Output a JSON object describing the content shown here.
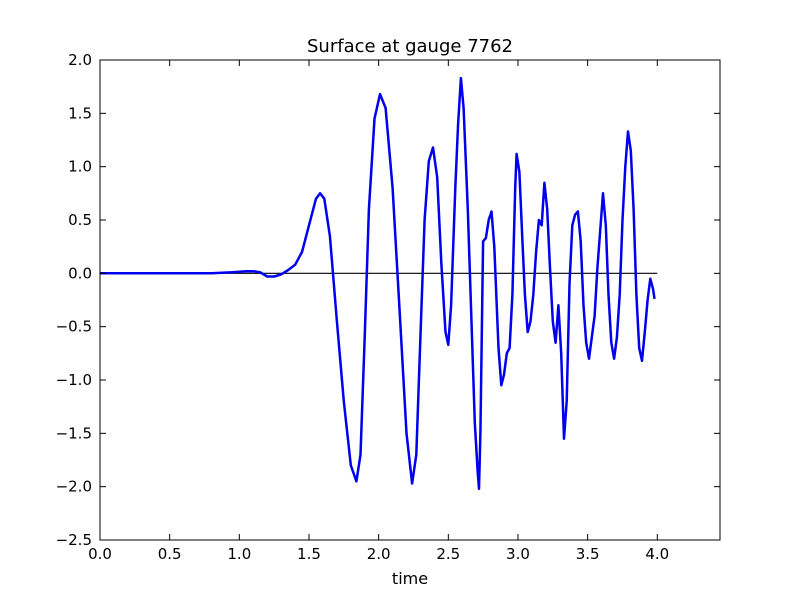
{
  "chart_data": {
    "type": "line",
    "title": "Surface at gauge 7762",
    "xlabel": "time",
    "ylabel": "",
    "xlim": [
      0.0,
      4.45
    ],
    "ylim": [
      -2.5,
      2.0
    ],
    "x_ticks": [
      "0.0",
      "0.5",
      "1.0",
      "1.5",
      "2.0",
      "2.5",
      "3.0",
      "3.5",
      "4.0"
    ],
    "x_tick_values": [
      0.0,
      0.5,
      1.0,
      1.5,
      2.0,
      2.5,
      3.0,
      3.5,
      4.0
    ],
    "y_ticks": [
      "2.0",
      "1.5",
      "1.0",
      "0.5",
      "0.0",
      "−0.5",
      "−1.0",
      "−1.5",
      "−2.0",
      "−2.5"
    ],
    "y_tick_values": [
      2.0,
      1.5,
      1.0,
      0.5,
      0.0,
      -0.5,
      -1.0,
      -1.5,
      -2.0,
      -2.5
    ],
    "grid": false,
    "reference_line": {
      "y": 0,
      "x_range": [
        0.0,
        4.0
      ],
      "color": "#000000"
    },
    "series": [
      {
        "color": "#0000ee",
        "points": [
          [
            0.0,
            0.0
          ],
          [
            0.5,
            0.0
          ],
          [
            0.8,
            0.0
          ],
          [
            0.95,
            0.01
          ],
          [
            1.05,
            0.02
          ],
          [
            1.1,
            0.02
          ],
          [
            1.15,
            0.01
          ],
          [
            1.2,
            -0.03
          ],
          [
            1.25,
            -0.03
          ],
          [
            1.3,
            -0.01
          ],
          [
            1.35,
            0.03
          ],
          [
            1.4,
            0.08
          ],
          [
            1.45,
            0.2
          ],
          [
            1.5,
            0.45
          ],
          [
            1.55,
            0.7
          ],
          [
            1.58,
            0.75
          ],
          [
            1.61,
            0.7
          ],
          [
            1.65,
            0.35
          ],
          [
            1.7,
            -0.45
          ],
          [
            1.75,
            -1.2
          ],
          [
            1.8,
            -1.8
          ],
          [
            1.84,
            -1.95
          ],
          [
            1.87,
            -1.7
          ],
          [
            1.9,
            -0.6
          ],
          [
            1.93,
            0.6
          ],
          [
            1.97,
            1.45
          ],
          [
            2.01,
            1.68
          ],
          [
            2.05,
            1.55
          ],
          [
            2.1,
            0.8
          ],
          [
            2.15,
            -0.35
          ],
          [
            2.2,
            -1.5
          ],
          [
            2.24,
            -1.97
          ],
          [
            2.27,
            -1.7
          ],
          [
            2.3,
            -0.6
          ],
          [
            2.33,
            0.5
          ],
          [
            2.36,
            1.05
          ],
          [
            2.39,
            1.18
          ],
          [
            2.42,
            0.9
          ],
          [
            2.45,
            0.1
          ],
          [
            2.48,
            -0.55
          ],
          [
            2.5,
            -0.67
          ],
          [
            2.52,
            -0.3
          ],
          [
            2.55,
            0.8
          ],
          [
            2.57,
            1.4
          ],
          [
            2.59,
            1.83
          ],
          [
            2.61,
            1.55
          ],
          [
            2.64,
            0.6
          ],
          [
            2.67,
            -0.6
          ],
          [
            2.69,
            -1.4
          ],
          [
            2.71,
            -1.85
          ],
          [
            2.72,
            -2.02
          ],
          [
            2.73,
            -1.5
          ],
          [
            2.75,
            0.3
          ],
          [
            2.77,
            0.33
          ],
          [
            2.79,
            0.5
          ],
          [
            2.81,
            0.58
          ],
          [
            2.83,
            0.25
          ],
          [
            2.86,
            -0.7
          ],
          [
            2.88,
            -1.05
          ],
          [
            2.9,
            -0.95
          ],
          [
            2.92,
            -0.75
          ],
          [
            2.94,
            -0.7
          ],
          [
            2.96,
            -0.2
          ],
          [
            2.98,
            0.8
          ],
          [
            2.99,
            1.12
          ],
          [
            3.01,
            0.95
          ],
          [
            3.03,
            0.35
          ],
          [
            3.05,
            -0.2
          ],
          [
            3.07,
            -0.55
          ],
          [
            3.09,
            -0.45
          ],
          [
            3.11,
            -0.2
          ],
          [
            3.13,
            0.2
          ],
          [
            3.15,
            0.5
          ],
          [
            3.17,
            0.45
          ],
          [
            3.19,
            0.85
          ],
          [
            3.21,
            0.6
          ],
          [
            3.23,
            0.05
          ],
          [
            3.25,
            -0.45
          ],
          [
            3.27,
            -0.65
          ],
          [
            3.29,
            -0.3
          ],
          [
            3.31,
            -0.75
          ],
          [
            3.33,
            -1.55
          ],
          [
            3.35,
            -1.2
          ],
          [
            3.37,
            -0.1
          ],
          [
            3.39,
            0.45
          ],
          [
            3.41,
            0.55
          ],
          [
            3.43,
            0.58
          ],
          [
            3.45,
            0.3
          ],
          [
            3.47,
            -0.3
          ],
          [
            3.49,
            -0.65
          ],
          [
            3.51,
            -0.8
          ],
          [
            3.53,
            -0.6
          ],
          [
            3.55,
            -0.4
          ],
          [
            3.57,
            0.05
          ],
          [
            3.59,
            0.4
          ],
          [
            3.61,
            0.75
          ],
          [
            3.63,
            0.45
          ],
          [
            3.65,
            -0.2
          ],
          [
            3.67,
            -0.65
          ],
          [
            3.69,
            -0.8
          ],
          [
            3.71,
            -0.6
          ],
          [
            3.73,
            -0.2
          ],
          [
            3.75,
            0.5
          ],
          [
            3.77,
            1.0
          ],
          [
            3.79,
            1.33
          ],
          [
            3.81,
            1.15
          ],
          [
            3.83,
            0.6
          ],
          [
            3.85,
            -0.2
          ],
          [
            3.87,
            -0.7
          ],
          [
            3.89,
            -0.82
          ],
          [
            3.91,
            -0.55
          ],
          [
            3.93,
            -0.25
          ],
          [
            3.95,
            -0.05
          ],
          [
            3.97,
            -0.15
          ],
          [
            3.98,
            -0.24
          ]
        ]
      }
    ]
  }
}
